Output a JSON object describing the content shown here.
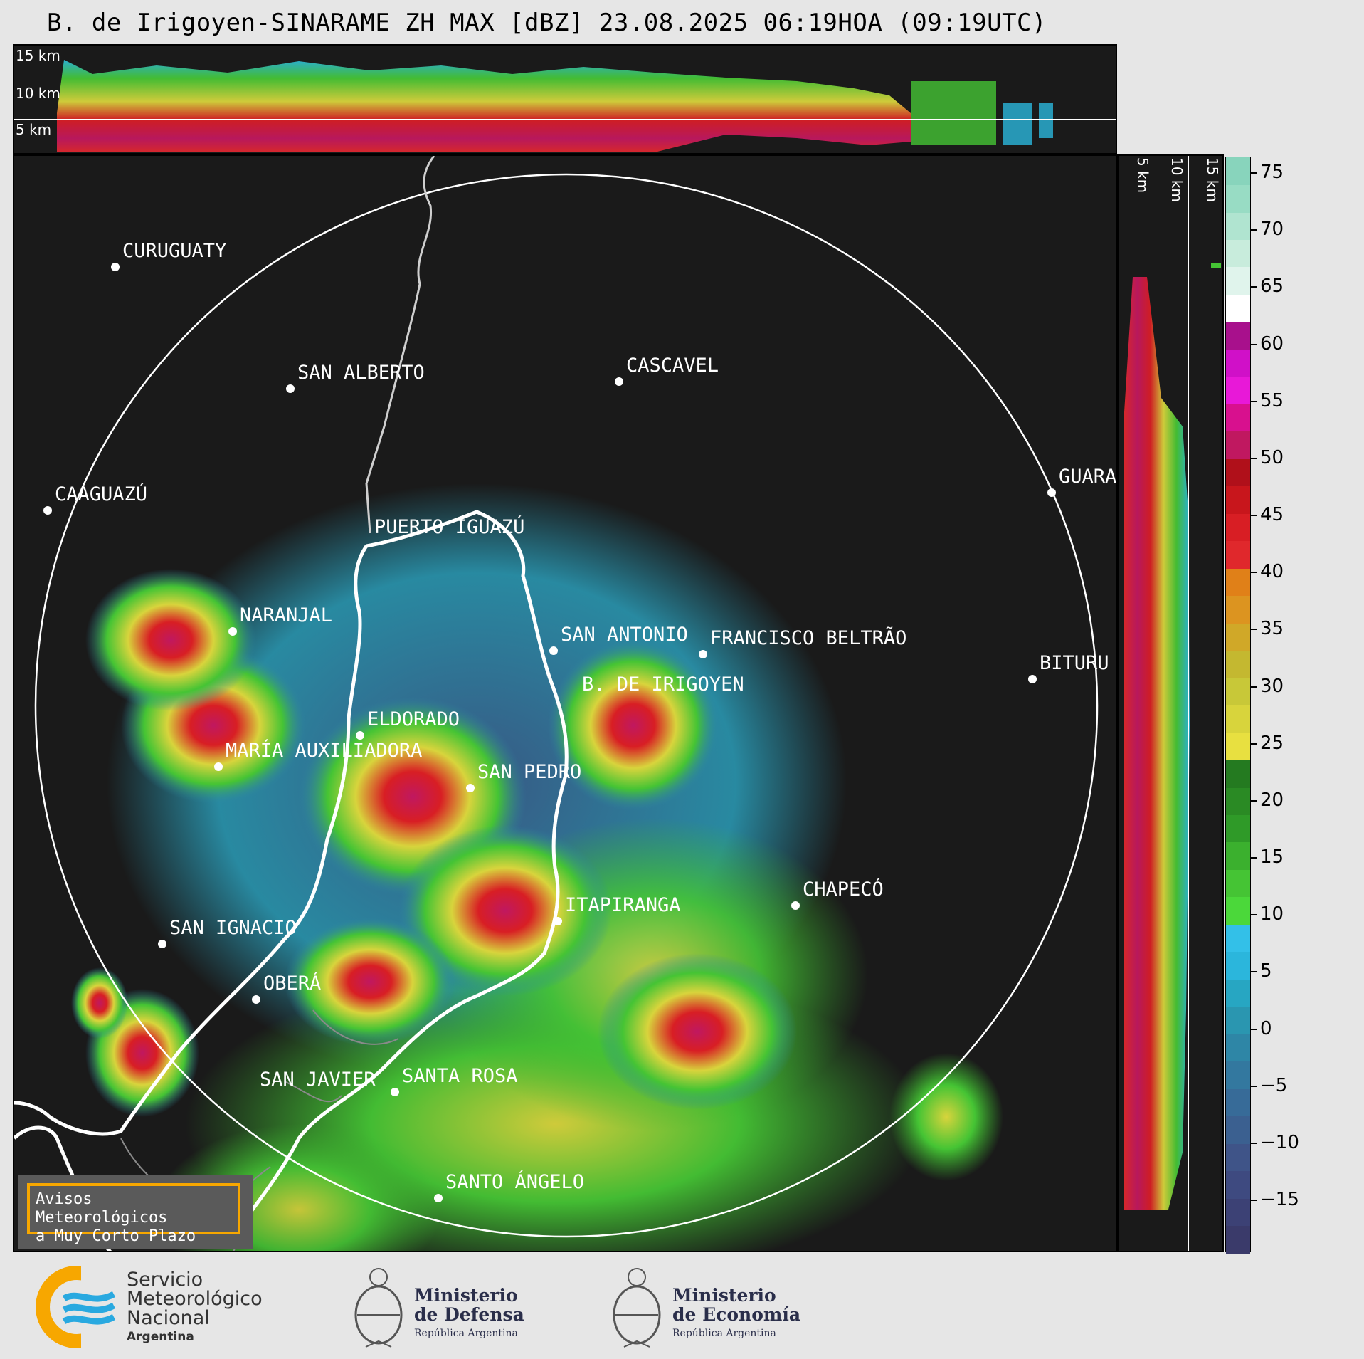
{
  "title": "B. de Irigoyen-SINARAME ZH MAX [dBZ] 23.08.2025 06:19HOA (09:19UTC)",
  "top_panel": {
    "height_labels": [
      "15 km",
      "10 km",
      "5 km"
    ]
  },
  "side_panel": {
    "height_labels": [
      "5 km",
      "10 km",
      "15 km"
    ]
  },
  "colorbar": {
    "unit": "dBZ",
    "ticks": [
      "75",
      "70",
      "65",
      "60",
      "55",
      "50",
      "45",
      "40",
      "35",
      "30",
      "25",
      "20",
      "15",
      "10",
      "5",
      "0",
      "−5",
      "−10",
      "−15"
    ],
    "colors": [
      "#3a3a6a",
      "#3c4175",
      "#3e4a80",
      "#3f5488",
      "#3b6090",
      "#376b98",
      "#33789f",
      "#2e86a6",
      "#2a96b0",
      "#27a6c2",
      "#2bb6dc",
      "#33c0e8",
      "#4bd83a",
      "#45c434",
      "#3bb02e",
      "#2f9a28",
      "#2a8a24",
      "#247a20",
      "#e8e040",
      "#d8d43c",
      "#c8c838",
      "#c4b830",
      "#d0a828",
      "#dc9420",
      "#e08018",
      "#e0282c",
      "#d81e24",
      "#c8161c",
      "#b0101a",
      "#c01860",
      "#d8108e",
      "#e818d8",
      "#d010c8",
      "#a8108c",
      "#ffffff",
      "#e0f4ec",
      "#c8ecdc",
      "#b0e4d0",
      "#98dcc4",
      "#88d4bc"
    ]
  },
  "cities": [
    {
      "name": "CURUGUATY"
    },
    {
      "name": "SAN ALBERTO"
    },
    {
      "name": "CASCAVEL"
    },
    {
      "name": "CAAGUAZÚ"
    },
    {
      "name": "GUARA"
    },
    {
      "name": "PUERTO IGUAZÚ"
    },
    {
      "name": "NARANJAL"
    },
    {
      "name": "SAN ANTONIO"
    },
    {
      "name": "FRANCISCO BELTRÃO"
    },
    {
      "name": "BITURU"
    },
    {
      "name": "B. DE IRIGOYEN"
    },
    {
      "name": "ELDORADO"
    },
    {
      "name": "MARÍA AUXILIADORA"
    },
    {
      "name": "SAN PEDRO"
    },
    {
      "name": "CHAPECÓ"
    },
    {
      "name": "ITAPIRANGA"
    },
    {
      "name": "SAN IGNACIO"
    },
    {
      "name": "OBERÁ"
    },
    {
      "name": "SAN JAVIER"
    },
    {
      "name": "SANTA ROSA"
    },
    {
      "name": "SANTO ÁNGELO"
    }
  ],
  "avisos": {
    "line1": "Avisos Meteorológicos",
    "line2": "a Muy Corto Plazo"
  },
  "footer": {
    "smn": {
      "line1": "Servicio",
      "line2": "Meteorológico",
      "line3": "Nacional",
      "line4": "Argentina"
    },
    "defensa": {
      "line1": "Ministerio",
      "line2": "de Defensa",
      "line3": "República Argentina"
    },
    "economia": {
      "line1": "Ministerio",
      "line2": "de Economía",
      "line3": "República Argentina"
    }
  }
}
